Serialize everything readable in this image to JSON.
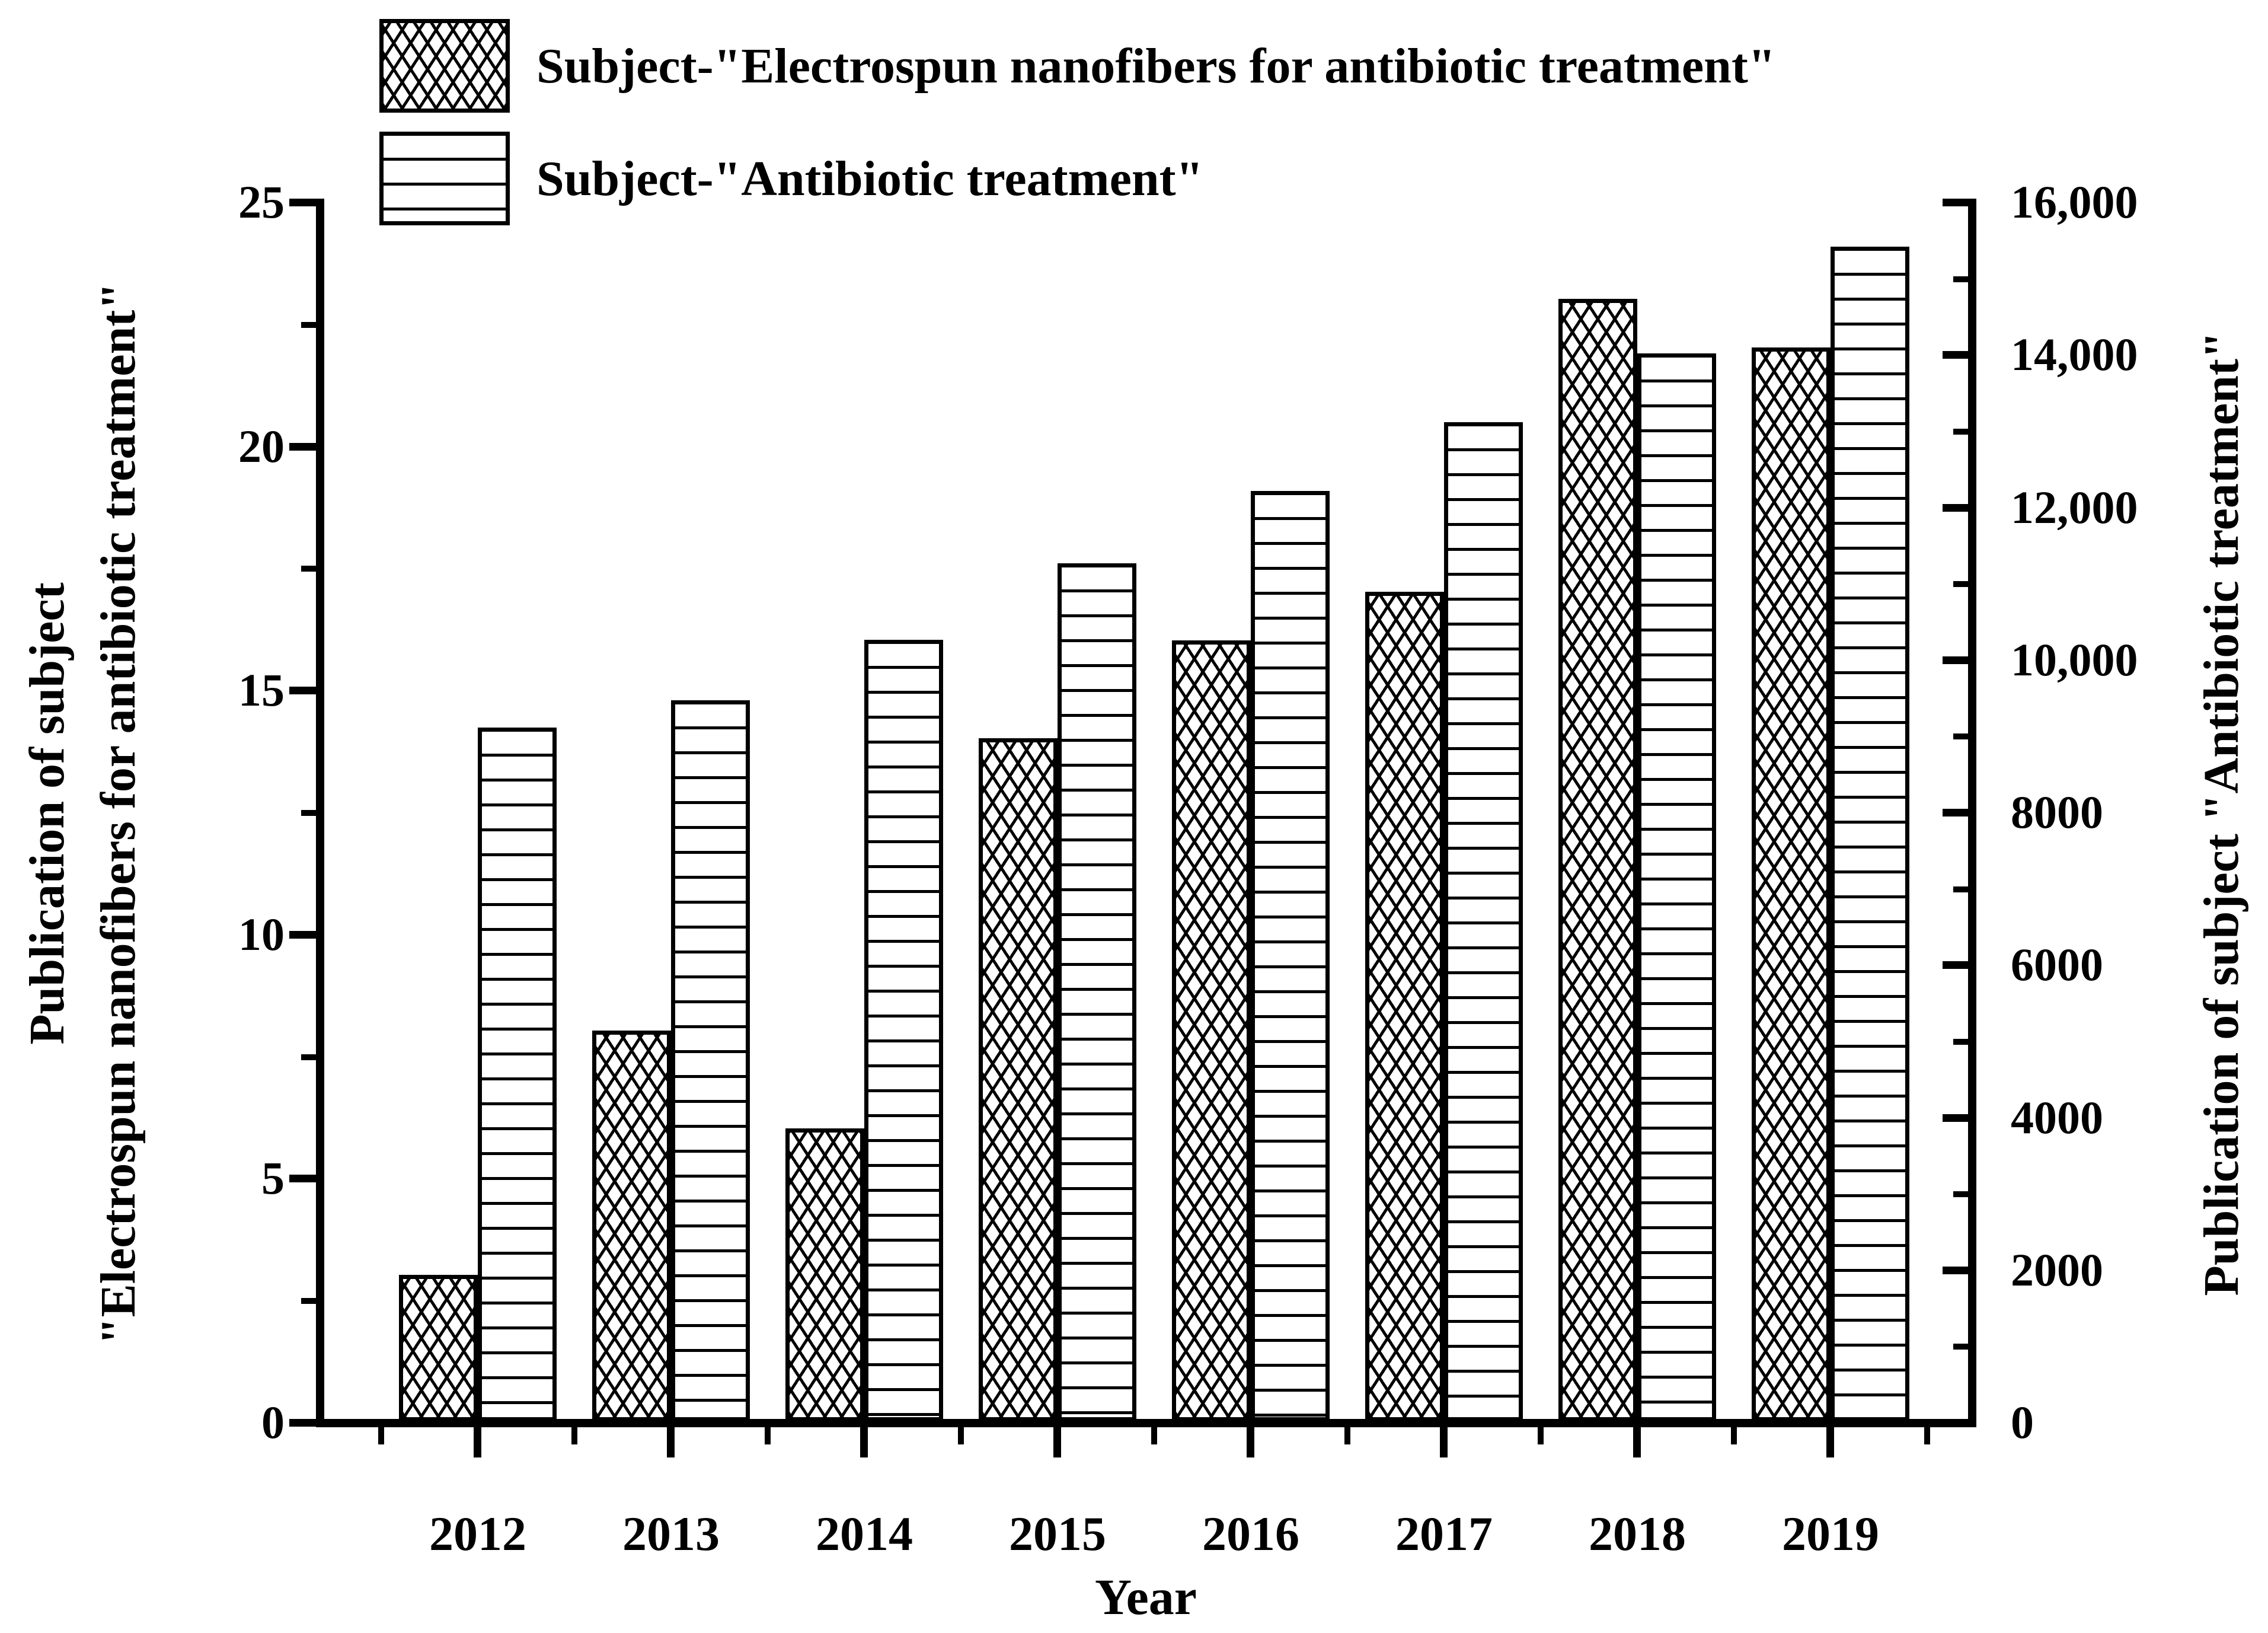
{
  "figure_type": "dual-axis grouped bar chart",
  "colors": {
    "ink": "#000000",
    "background": "#ffffff"
  },
  "chart_data": {
    "type": "bar",
    "categories": [
      "2012",
      "2013",
      "2014",
      "2015",
      "2016",
      "2017",
      "2018",
      "2019"
    ],
    "series": [
      {
        "name": "Subject-\"Electrospun nanofibers for antibiotic treatment\"",
        "axis": "left",
        "pattern": "crosshatch",
        "values": [
          3,
          8,
          6,
          14,
          16,
          17,
          23,
          22
        ]
      },
      {
        "name": "Subject-\"Antibiotic treatment\"",
        "axis": "right",
        "pattern": "horizontal-lines",
        "values": [
          9100,
          9450,
          10250,
          11250,
          12200,
          13100,
          14000,
          15400
        ]
      }
    ],
    "x_axis": {
      "title": "Year",
      "tick_labels": [
        "2012",
        "2013",
        "2014",
        "2015",
        "2016",
        "2017",
        "2018",
        "2019"
      ]
    },
    "left_axis": {
      "title_line1": "Publication of subject",
      "title_line2": "\"Electrospun nanofibers for antibiotic treatment\"",
      "range": [
        0,
        25
      ],
      "major_ticks": [
        0,
        5,
        10,
        15,
        20,
        25
      ],
      "tick_labels": [
        "0",
        "5",
        "10",
        "15",
        "20",
        "25"
      ],
      "minor_step": 2.5
    },
    "right_axis": {
      "title": "Publication of subject \"Antibiotic treatment\"",
      "range": [
        0,
        16000
      ],
      "major_ticks": [
        0,
        2000,
        4000,
        6000,
        8000,
        10000,
        12000,
        14000,
        16000
      ],
      "tick_labels": [
        "0",
        "2000",
        "4000",
        "6000",
        "8000",
        "10,000",
        "12,000",
        "14,000",
        "16,000"
      ],
      "minor_step": 1000
    },
    "legend_position": "top-left",
    "grid": false
  }
}
